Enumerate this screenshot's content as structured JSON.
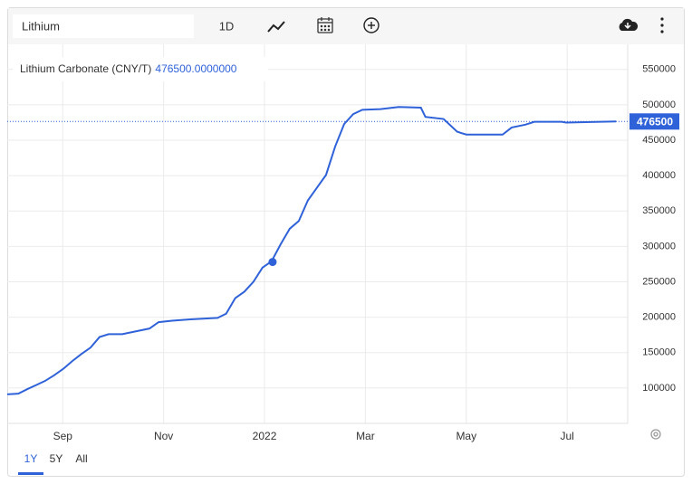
{
  "search": "Lithium",
  "toolbar": {
    "interval": "1D"
  },
  "ranges": [
    "1Y",
    "5Y",
    "All"
  ],
  "chart_data": {
    "type": "line",
    "current": {
      "name": "Lithium Carbonate (CNY/T)",
      "value": 476500,
      "label": "476500.0000000"
    },
    "x": [
      7.9,
      8.12,
      8.3,
      8.47,
      8.65,
      8.83,
      9.01,
      9.19,
      9.37,
      9.55,
      9.73,
      9.91,
      10.18,
      10.45,
      10.72,
      10.9,
      11.17,
      11.53,
      12.07,
      12.24,
      12.42,
      12.6,
      12.78,
      12.96,
      13.14,
      13.32,
      13.5,
      13.68,
      13.86,
      14.04,
      14.22,
      14.4,
      14.58,
      14.76,
      14.94,
      15.3,
      15.66,
      16.1,
      16.19,
      16.55,
      16.82,
      17.0,
      17.72,
      17.9,
      18.17,
      18.35,
      18.89,
      18.98,
      19.97
    ],
    "series": [
      {
        "name": "Lithium Carbonate (CNY/T)",
        "color": "#2f62d9",
        "values": [
          91000,
          92000,
          98500,
          104000,
          110000,
          118000,
          127000,
          138000,
          148000,
          157000,
          172000,
          176000,
          176000,
          180000,
          184000,
          193000,
          195000,
          197000,
          199000,
          205000,
          227000,
          236000,
          250000,
          270000,
          279000,
          303000,
          325000,
          336000,
          365000,
          383000,
          401000,
          441000,
          473000,
          487000,
          493000,
          494000,
          497000,
          496000,
          483000,
          480000,
          462000,
          458000,
          458000,
          468000,
          472000,
          476000,
          476000,
          475000,
          476500
        ]
      }
    ],
    "highlight": {
      "x": 13.16,
      "y": 278000
    },
    "xlim": [
      7.9,
      20.2
    ],
    "xticks": [
      {
        "value": 9,
        "label": "Sep"
      },
      {
        "value": 11,
        "label": "Nov"
      },
      {
        "value": 13,
        "label": "2022"
      },
      {
        "value": 15,
        "label": "Mar"
      },
      {
        "value": 17,
        "label": "May"
      },
      {
        "value": 19,
        "label": "Jul"
      }
    ],
    "ylim": [
      50000,
      585500
    ],
    "yticks": [
      100000,
      150000,
      200000,
      250000,
      300000,
      350000,
      400000,
      450000,
      500000,
      550000
    ],
    "grid": true
  }
}
